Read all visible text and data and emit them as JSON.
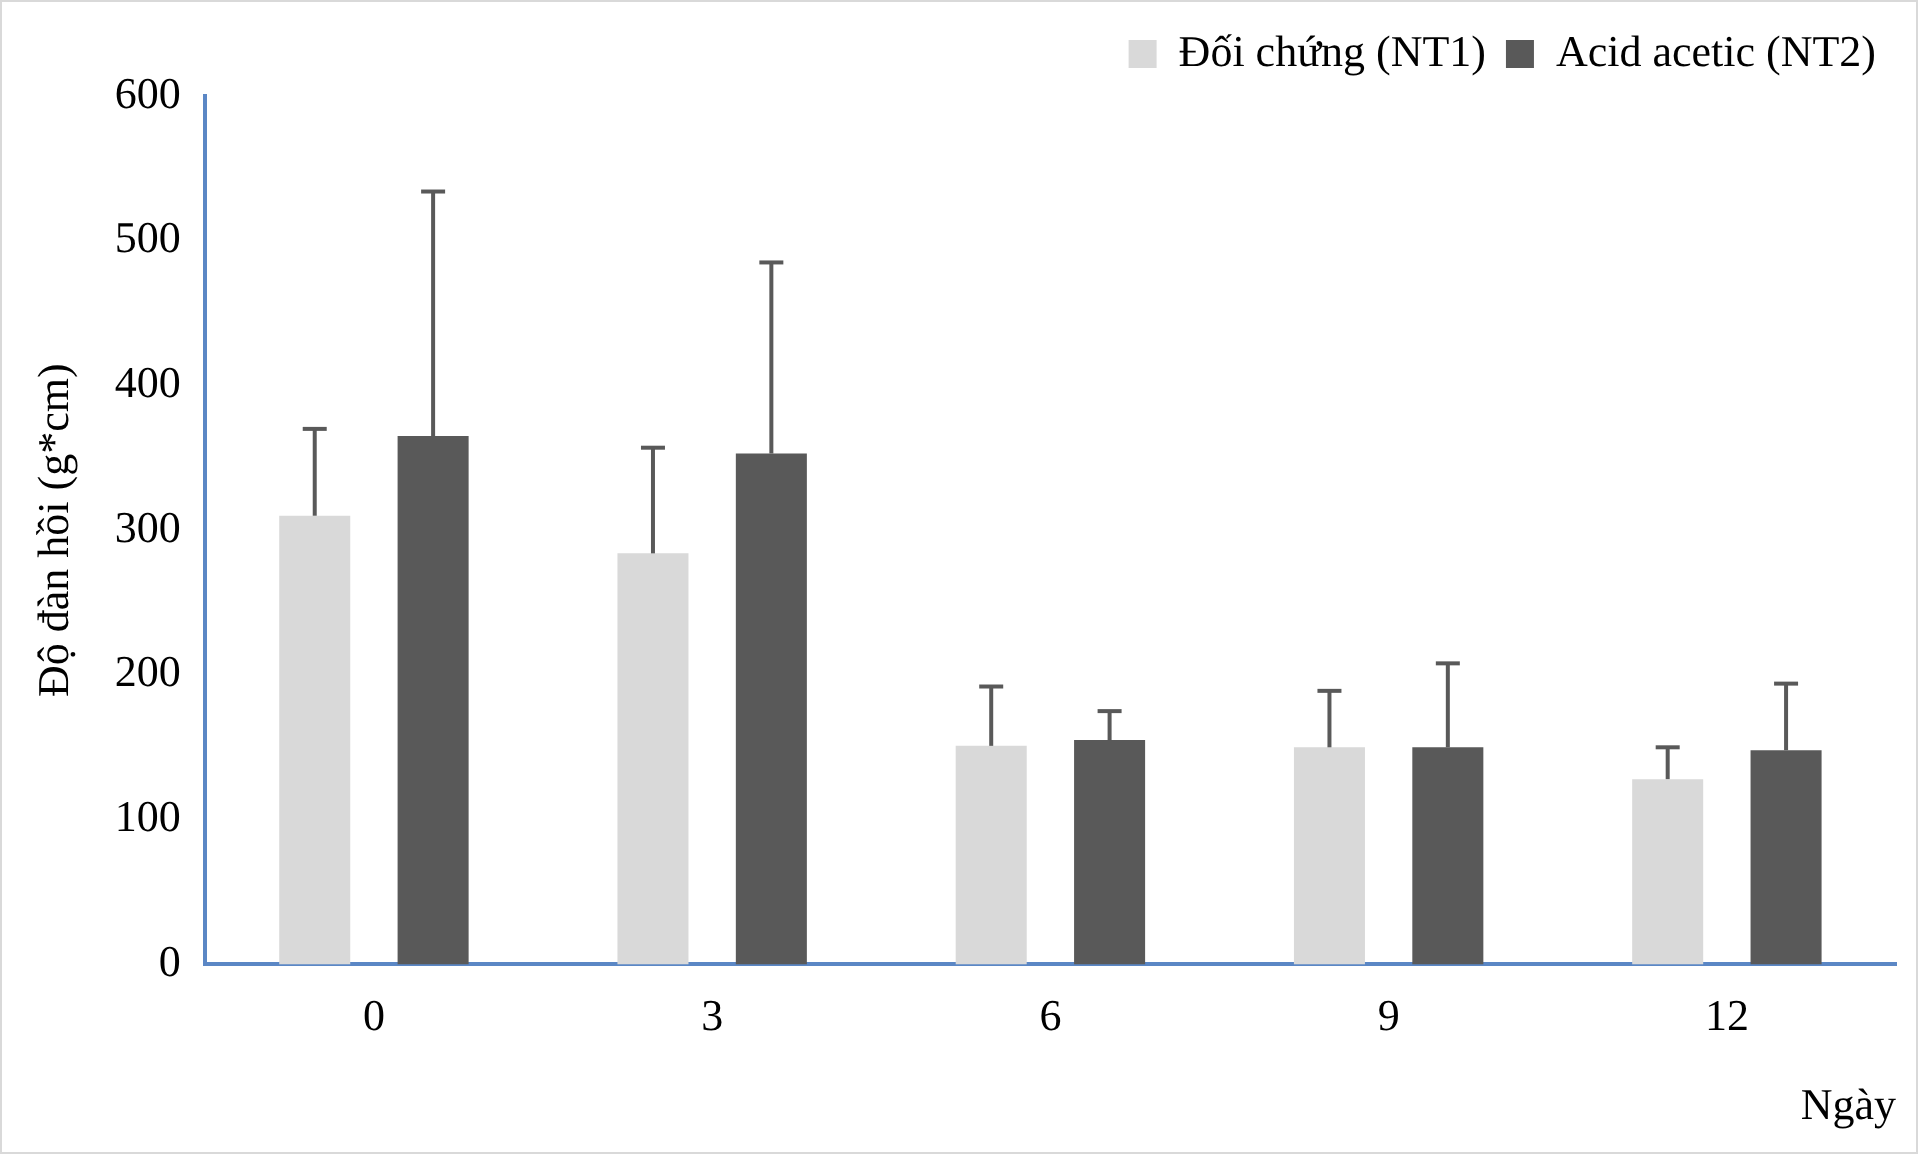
{
  "chart_data": {
    "type": "bar",
    "xlabel": "Ngày",
    "ylabel": "Độ đàn hồi (g*cm)",
    "categories": [
      "0",
      "3",
      "6",
      "9",
      "12"
    ],
    "series": [
      {
        "name": "Đối chứng (NT1)",
        "color": "#d9d9d9",
        "values": [
          310,
          284,
          151,
          150,
          128
        ],
        "errors": [
          [
            310,
            370
          ],
          [
            284,
            357
          ],
          [
            151,
            192
          ],
          [
            150,
            189
          ],
          [
            128,
            150
          ]
        ]
      },
      {
        "name": "Acid acetic (NT2)",
        "color": "#595959",
        "values": [
          365,
          353,
          155,
          150,
          148
        ],
        "errors": [
          [
            365,
            534
          ],
          [
            353,
            485
          ],
          [
            155,
            175
          ],
          [
            150,
            208
          ],
          [
            148,
            194
          ]
        ]
      }
    ],
    "ylim": [
      0,
      600
    ],
    "yticks": [
      0,
      100,
      200,
      300,
      400,
      500,
      600
    ],
    "grid": false,
    "legend": "top right"
  }
}
